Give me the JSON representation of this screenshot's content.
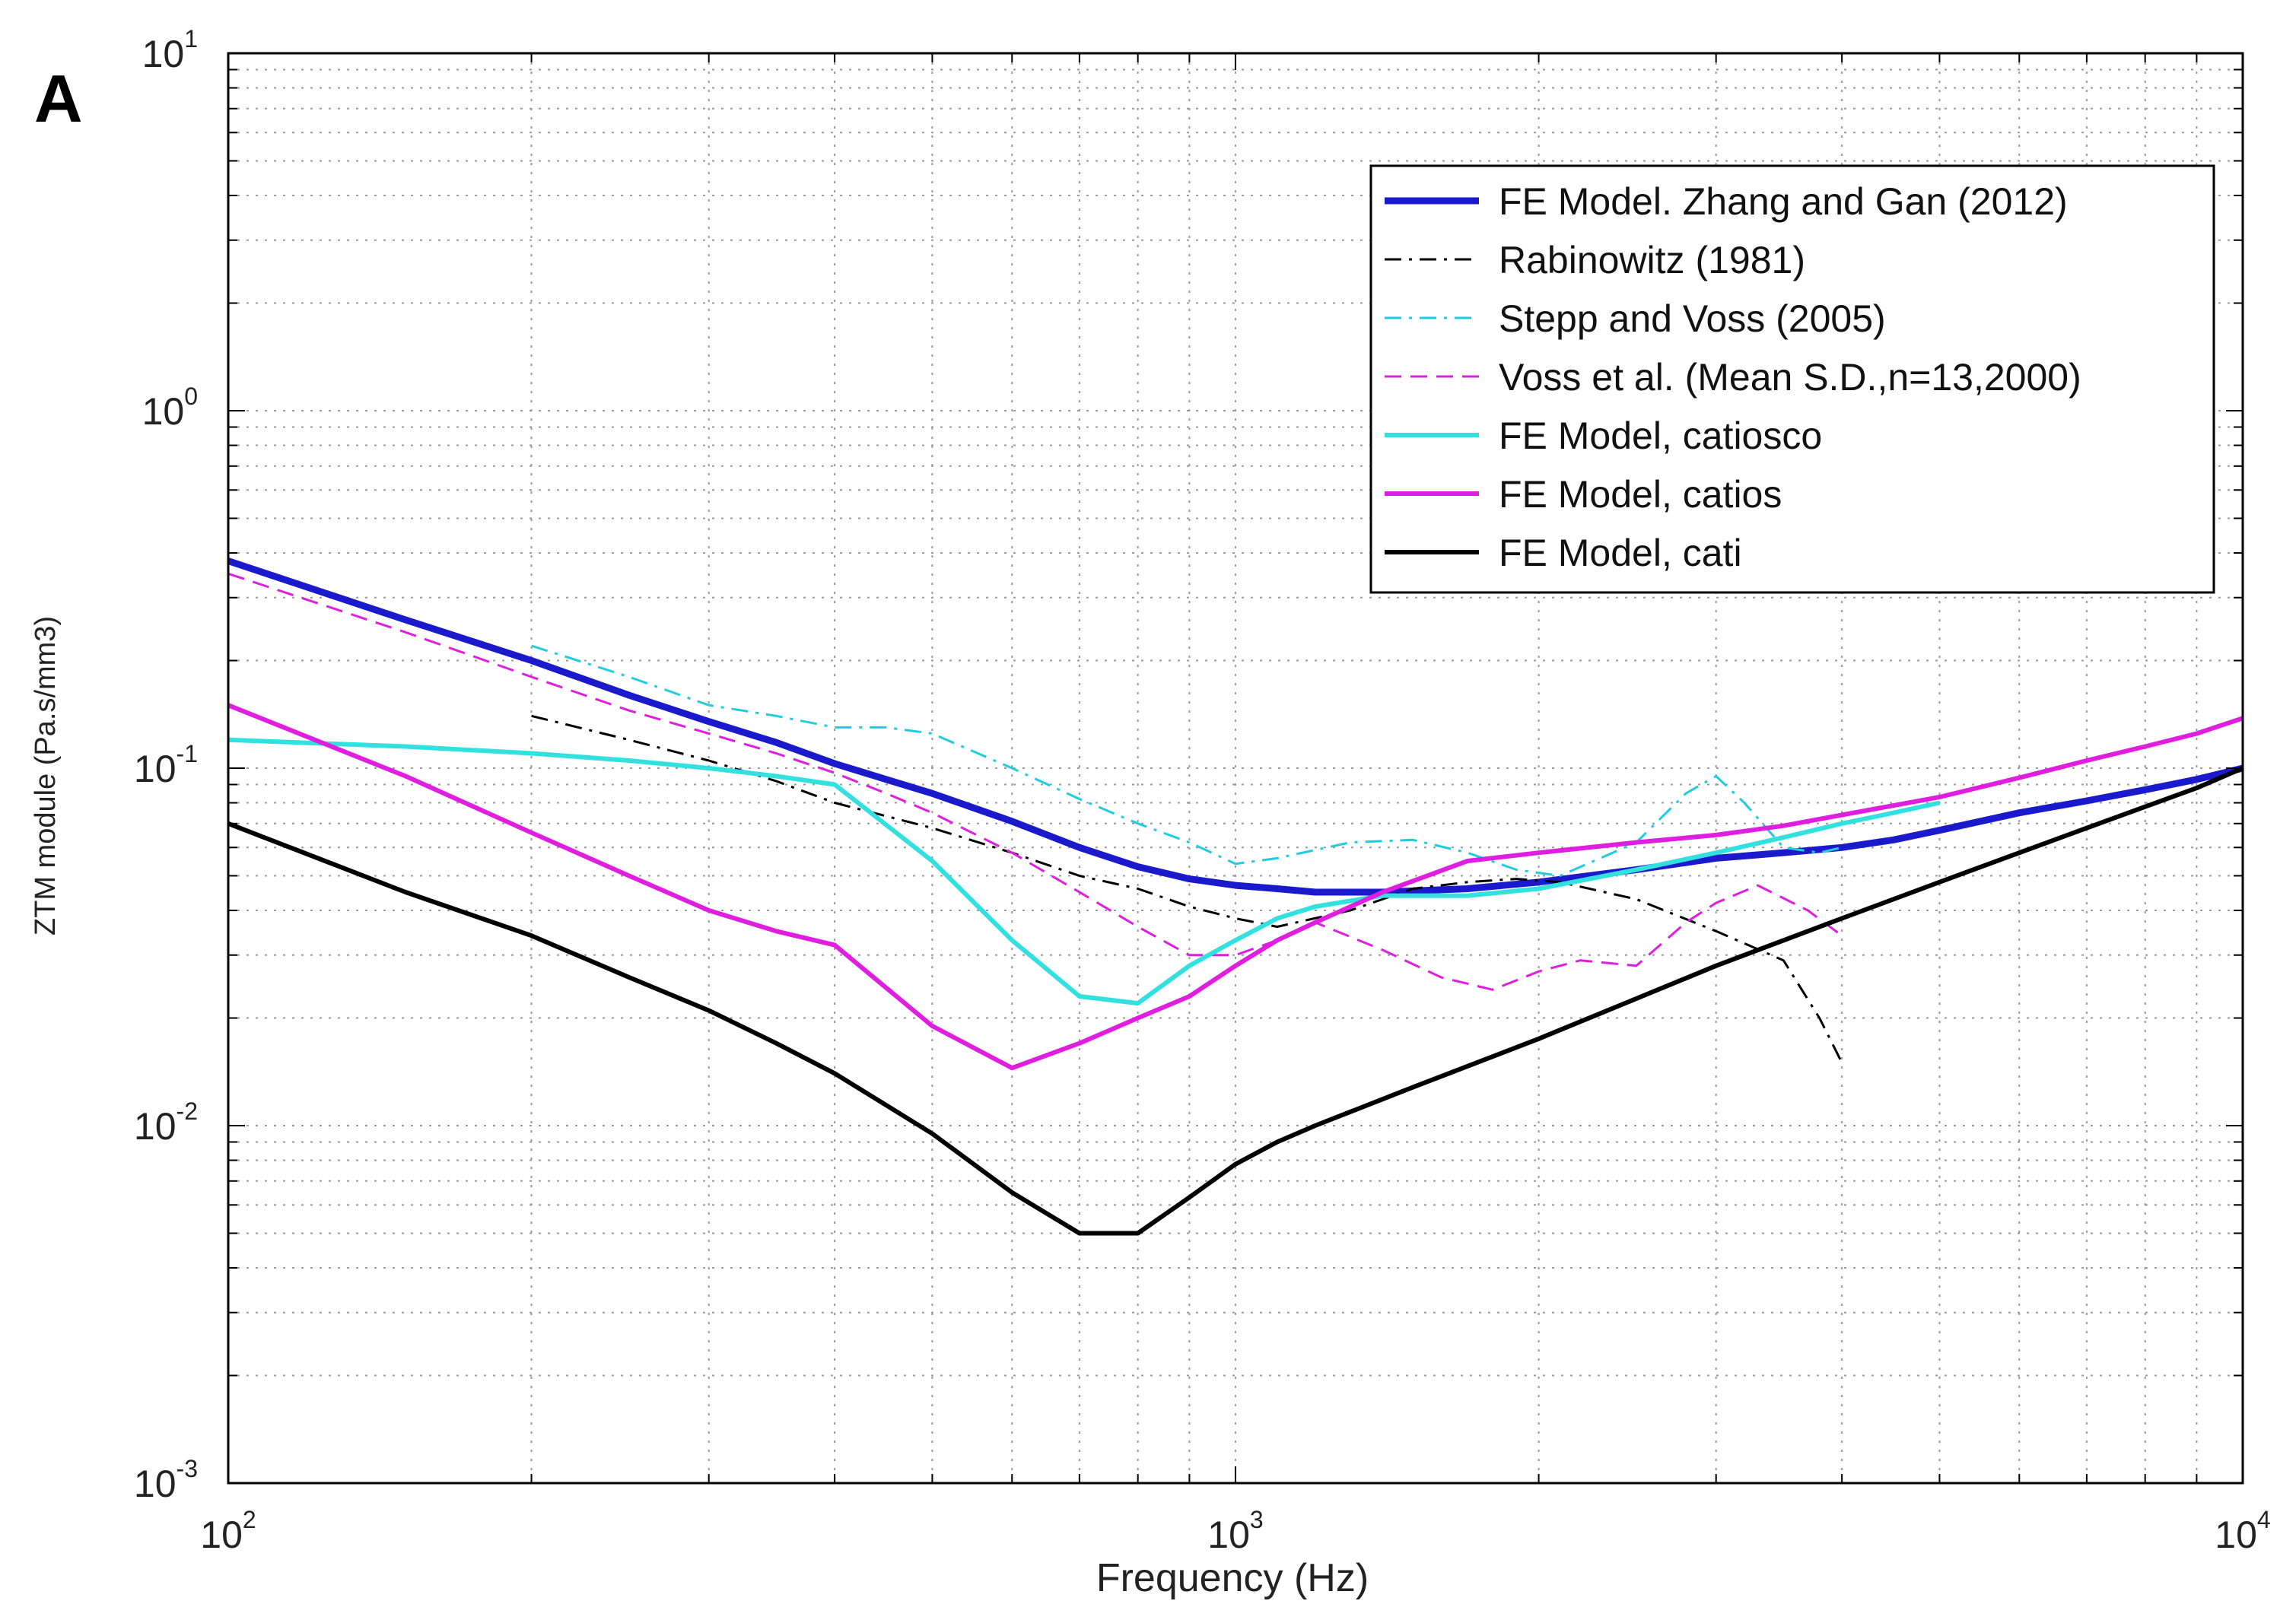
{
  "chart_data": {
    "type": "line",
    "panel_label": "A",
    "title": "",
    "xlabel": "Frequency (Hz)",
    "ylabel": "ZTM module (Pa.s/mm3)",
    "xscale": "log",
    "yscale": "log",
    "xlim": [
      100,
      10000
    ],
    "ylim": [
      0.001,
      10
    ],
    "grid": true,
    "legend_position": "top-right",
    "x_ticks": [
      {
        "value": 100,
        "base": "10",
        "exp": "2"
      },
      {
        "value": 1000,
        "base": "10",
        "exp": "3"
      },
      {
        "value": 10000,
        "base": "10",
        "exp": "4"
      }
    ],
    "y_ticks": [
      {
        "value": 0.001,
        "base": "10",
        "exp": "-3"
      },
      {
        "value": 0.01,
        "base": "10",
        "exp": "-2"
      },
      {
        "value": 0.1,
        "base": "10",
        "exp": "-1"
      },
      {
        "value": 1,
        "base": "10",
        "exp": "0"
      },
      {
        "value": 10,
        "base": "10",
        "exp": "1"
      }
    ],
    "series": [
      {
        "name": "FE Model. Zhang and Gan (2012)",
        "color": "#1a1acc",
        "style": "solid",
        "width": "thick",
        "x": [
          100,
          150,
          200,
          250,
          300,
          350,
          400,
          450,
          500,
          600,
          700,
          800,
          900,
          1000,
          1100,
          1200,
          1400,
          1700,
          2000,
          2500,
          3000,
          3500,
          4000,
          4500,
          5000,
          6000,
          7000,
          8000,
          9000,
          10000
        ],
        "y": [
          0.38,
          0.26,
          0.2,
          0.16,
          0.135,
          0.118,
          0.103,
          0.093,
          0.085,
          0.071,
          0.06,
          0.053,
          0.049,
          0.047,
          0.046,
          0.045,
          0.045,
          0.046,
          0.048,
          0.052,
          0.056,
          0.058,
          0.06,
          0.063,
          0.067,
          0.075,
          0.081,
          0.087,
          0.093,
          0.1
        ]
      },
      {
        "name": "Rabinowitz (1981)",
        "color": "#000000",
        "style": "dashdot",
        "width": "thin",
        "x": [
          200,
          250,
          300,
          350,
          400,
          500,
          600,
          700,
          800,
          900,
          1000,
          1100,
          1300,
          1500,
          1700,
          1900,
          2100,
          2500,
          3000,
          3500,
          3800,
          4000
        ],
        "y": [
          0.14,
          0.12,
          0.105,
          0.092,
          0.08,
          0.068,
          0.058,
          0.05,
          0.046,
          0.041,
          0.038,
          0.036,
          0.04,
          0.046,
          0.048,
          0.049,
          0.048,
          0.043,
          0.035,
          0.029,
          0.02,
          0.015
        ]
      },
      {
        "name": "Stepp  and Voss (2005)",
        "color": "#22cce0",
        "style": "dashdot",
        "width": "thin",
        "x": [
          200,
          250,
          300,
          350,
          400,
          450,
          500,
          600,
          700,
          800,
          900,
          1000,
          1100,
          1300,
          1500,
          1700,
          1900,
          2100,
          2500,
          2800,
          3000,
          3200,
          3500,
          3800,
          4000
        ],
        "y": [
          0.22,
          0.18,
          0.15,
          0.14,
          0.13,
          0.13,
          0.125,
          0.1,
          0.082,
          0.07,
          0.062,
          0.054,
          0.056,
          0.062,
          0.063,
          0.058,
          0.052,
          0.05,
          0.062,
          0.085,
          0.095,
          0.08,
          0.06,
          0.058,
          0.06
        ]
      },
      {
        "name": "Voss et al. (Mean S.D.,n=13,2000)",
        "color": "#e01ee0",
        "style": "dashed",
        "width": "thin",
        "x": [
          100,
          150,
          200,
          250,
          300,
          350,
          400,
          450,
          500,
          600,
          700,
          800,
          900,
          1000,
          1100,
          1200,
          1400,
          1600,
          1800,
          2000,
          2200,
          2500,
          2800,
          3000,
          3300,
          3700,
          4000
        ],
        "y": [
          0.35,
          0.24,
          0.18,
          0.145,
          0.125,
          0.11,
          0.097,
          0.085,
          0.075,
          0.058,
          0.045,
          0.036,
          0.03,
          0.03,
          0.033,
          0.037,
          0.031,
          0.026,
          0.024,
          0.027,
          0.029,
          0.028,
          0.037,
          0.042,
          0.047,
          0.04,
          0.034
        ]
      },
      {
        "name": "FE Model, catiosco",
        "color": "#33e0e0",
        "style": "solid",
        "width": "medium",
        "x": [
          100,
          150,
          200,
          250,
          300,
          350,
          400,
          500,
          600,
          700,
          800,
          900,
          1000,
          1100,
          1200,
          1400,
          1700,
          2000,
          2500,
          3000,
          3500,
          4000,
          4500,
          5000
        ],
        "y": [
          0.12,
          0.115,
          0.11,
          0.105,
          0.1,
          0.095,
          0.09,
          0.055,
          0.033,
          0.023,
          0.022,
          0.028,
          0.033,
          0.038,
          0.041,
          0.044,
          0.044,
          0.046,
          0.052,
          0.058,
          0.064,
          0.07,
          0.075,
          0.08
        ]
      },
      {
        "name": "FE Model, catios",
        "color": "#e01ee0",
        "style": "solid",
        "width": "medium",
        "x": [
          100,
          150,
          200,
          250,
          300,
          350,
          400,
          500,
          600,
          700,
          800,
          900,
          1000,
          1100,
          1200,
          1400,
          1700,
          2000,
          2500,
          3000,
          3500,
          4000,
          5000,
          6000,
          7000,
          8000,
          9000,
          10000
        ],
        "y": [
          0.15,
          0.095,
          0.066,
          0.05,
          0.04,
          0.035,
          0.032,
          0.019,
          0.0145,
          0.017,
          0.02,
          0.023,
          0.028,
          0.033,
          0.037,
          0.045,
          0.055,
          0.058,
          0.062,
          0.065,
          0.069,
          0.074,
          0.083,
          0.094,
          0.105,
          0.115,
          0.125,
          0.138
        ]
      },
      {
        "name": "FE Model, cati",
        "color": "#000000",
        "style": "solid",
        "width": "medium",
        "x": [
          100,
          150,
          200,
          250,
          300,
          350,
          400,
          500,
          600,
          700,
          800,
          900,
          1000,
          1100,
          1200,
          1500,
          2000,
          3000,
          4000,
          5000,
          6000,
          7000,
          8000,
          9000,
          10000
        ],
        "y": [
          0.07,
          0.045,
          0.034,
          0.026,
          0.021,
          0.017,
          0.014,
          0.0095,
          0.0065,
          0.005,
          0.005,
          0.0063,
          0.0078,
          0.009,
          0.01,
          0.0128,
          0.0175,
          0.028,
          0.038,
          0.048,
          0.058,
          0.068,
          0.078,
          0.088,
          0.1
        ]
      }
    ]
  }
}
